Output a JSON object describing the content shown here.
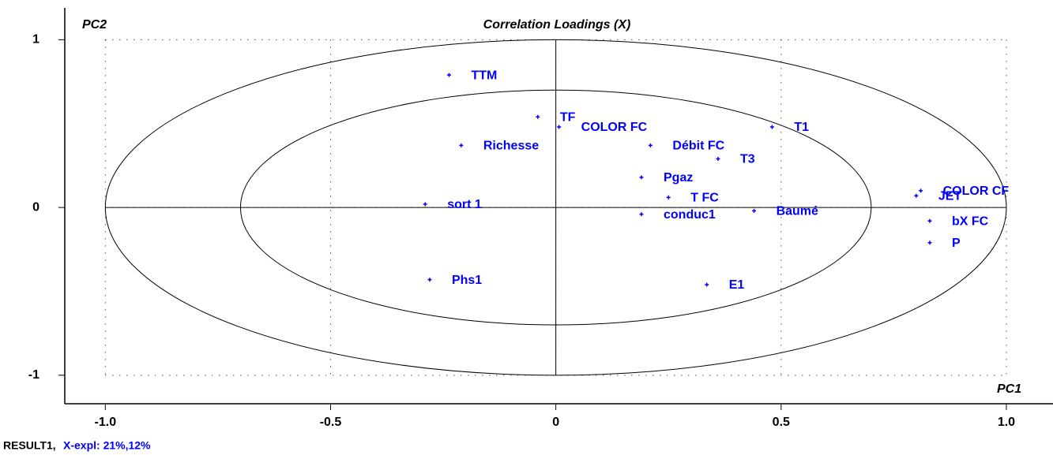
{
  "chart_data": {
    "type": "scatter",
    "title": "Correlation Loadings (X)",
    "x_label": "PC1",
    "y_label": "PC2",
    "footer_name": "RESULT1,",
    "footer_explained": "X-expl: 21%,12%",
    "series": [
      {
        "color": "#0000ff",
        "labels": [
          "TTM",
          "TF",
          "COLOR FC",
          "Richesse",
          "Débit FC",
          "T1",
          "T3",
          "Pgaz",
          "T FC",
          "sort 1",
          "conduc1",
          "Baumé",
          "COLOR CF",
          "JET",
          "bX FC",
          "P",
          "Phs1",
          "E1"
        ],
        "x": [
          -0.237,
          -0.04,
          0.007,
          -0.21,
          0.21,
          0.48,
          0.36,
          0.19,
          0.25,
          -0.29,
          0.19,
          0.44,
          0.81,
          0.8,
          0.83,
          0.83,
          -0.28,
          0.335
        ],
        "values": [
          0.79,
          0.54,
          0.48,
          0.37,
          0.37,
          0.48,
          0.29,
          0.18,
          0.06,
          0.02,
          -0.04,
          -0.02,
          0.1,
          0.07,
          -0.08,
          -0.21,
          -0.43,
          -0.46
        ]
      }
    ],
    "circles": [
      1,
      0.7
    ],
    "xlim": [
      -1.09,
      1.1
    ],
    "ylim": [
      -1.17,
      1.19
    ],
    "xticks": [
      {
        "value": -1,
        "label": "-1.0"
      },
      {
        "value": -0.5,
        "label": "-0.5"
      },
      0,
      {
        "value": 0.5,
        "label": "0.5"
      },
      {
        "value": 1,
        "label": "1.0"
      }
    ],
    "yticks": [
      1,
      0,
      -1
    ],
    "grid": true
  }
}
